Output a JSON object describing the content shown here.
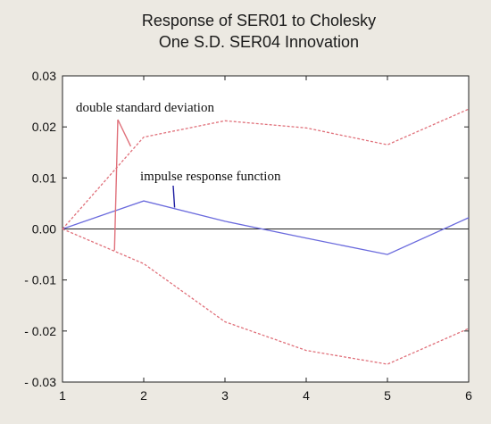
{
  "chart_data": {
    "type": "line",
    "title": [
      "Response of SER01 to Cholesky",
      "One S.D. SER04 Innovation"
    ],
    "x": [
      1,
      2,
      3,
      4,
      5,
      6
    ],
    "x_ticks": [
      "1",
      "2",
      "3",
      "4",
      "5",
      "6"
    ],
    "ylim": [
      -0.03,
      0.03
    ],
    "y_ticks": [
      0.03,
      0.02,
      0.01,
      0.0,
      -0.01,
      -0.02,
      -0.03
    ],
    "y_tick_labels": [
      "0.03",
      "0.02",
      "0.01",
      "0.00",
      "- 0.01",
      "- 0.02",
      "- 0.03"
    ],
    "zero_line": true,
    "grid": false,
    "series": [
      {
        "name": "impulse response function",
        "role": "response",
        "color": "#6a6add",
        "style": "solid",
        "values": [
          0.0,
          0.0055,
          0.0015,
          -0.0018,
          -0.005,
          0.0022
        ]
      },
      {
        "name": "double standard deviation",
        "role": "upper-band",
        "color": "#e0707a",
        "style": "dashed",
        "values": [
          0.0,
          0.018,
          0.0212,
          0.0198,
          0.0165,
          0.0235
        ]
      },
      {
        "name": "double standard deviation",
        "role": "lower-band",
        "color": "#e0707a",
        "style": "dashed",
        "values": [
          0.0,
          -0.0068,
          -0.0182,
          -0.0238,
          -0.0265,
          -0.0195
        ]
      }
    ],
    "annotations": [
      {
        "text": "double standard deviation",
        "color": "#e0707a",
        "pointers": [
          [
            1.84,
            0.0162
          ],
          [
            1.64,
            -0.0042
          ]
        ]
      },
      {
        "text": "impulse response function",
        "color": "#1a1aa0",
        "pointers": [
          [
            2.38,
            0.0042
          ]
        ]
      }
    ]
  }
}
